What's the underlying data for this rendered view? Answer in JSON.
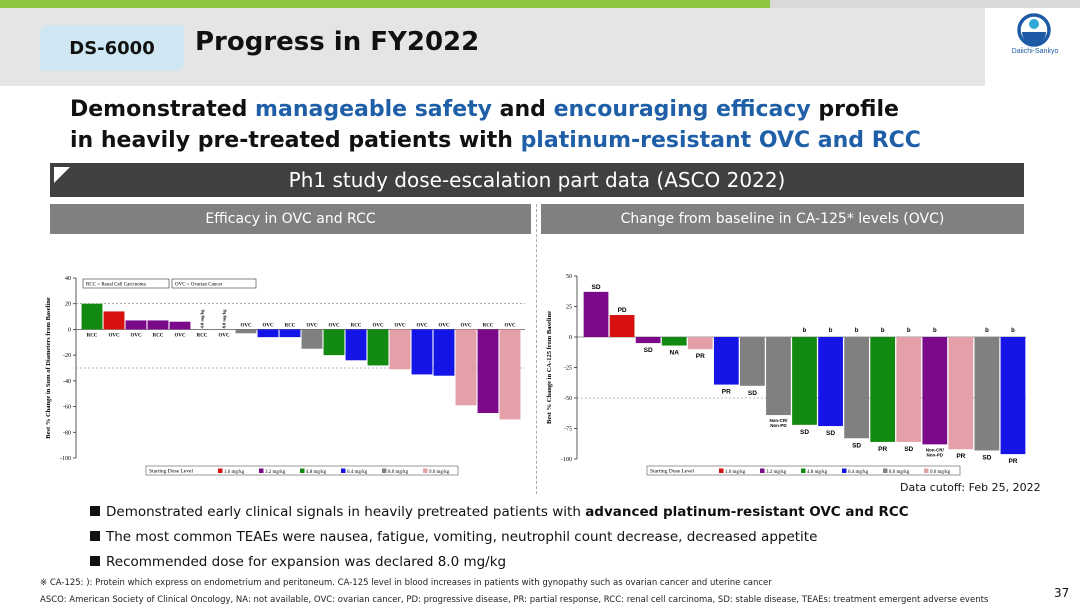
{
  "header": {
    "tag": "DS-6000",
    "title": "Progress in FY2022",
    "logo_text": "Daiichi-Sankyo"
  },
  "headline": {
    "line1": [
      {
        "text": "Demonstrated ",
        "highlight": false
      },
      {
        "text": "manageable safety",
        "highlight": true
      },
      {
        "text": " and ",
        "highlight": false
      },
      {
        "text": "encouraging efficacy",
        "highlight": true
      },
      {
        "text": " profile",
        "highlight": false
      }
    ],
    "line2": [
      {
        "text": "in heavily pre-treated patients with ",
        "highlight": false
      },
      {
        "text": "platinum-resistant OVC and RCC",
        "highlight": true
      }
    ]
  },
  "banner": "Ph1 study dose-escalation part data (ASCO 2022)",
  "panels": {
    "left_title": "Efficacy in OVC and RCC",
    "right_title": "Change from baseline in CA-125*  levels (OVC)"
  },
  "colors": {
    "accent_blue": "#1f5fa8",
    "dose_1_6": "#d81010",
    "dose_3_2": "#7a0a8a",
    "dose_4_8": "#128a12",
    "dose_6_4": "#1414e6",
    "dose_8_0": "#808080",
    "dose_9_6": "#e3a0a8"
  },
  "chart_data": [
    {
      "type": "bar",
      "title": "",
      "ylabel": "Best % Change in Sum of Diameters from Baseline",
      "ylim": [
        -100,
        40
      ],
      "yticks": [
        40,
        20,
        0,
        -20,
        -40,
        -60,
        -80,
        -100
      ],
      "reference_lines": [
        20,
        -30
      ],
      "legend_boxes": [
        "RCC = Renal Cell Carcinoma",
        "OVC = Ovarian Cancer"
      ],
      "series_legend_title": "Starting Dose Level",
      "series_legend": [
        {
          "label": "1.6 mg/kg",
          "color": "#d81010"
        },
        {
          "label": "3.2 mg/kg",
          "color": "#7a0a8a"
        },
        {
          "label": "4.8 mg/kg",
          "color": "#128a12"
        },
        {
          "label": "6.4 mg/kg",
          "color": "#1414e6"
        },
        {
          "label": "8.0 mg/kg",
          "color": "#808080"
        },
        {
          "label": "9.6 mg/kg",
          "color": "#e3a0a8"
        }
      ],
      "bars": [
        {
          "value": 20,
          "dose": "4.8 mg/kg",
          "label": "RCC"
        },
        {
          "value": 14,
          "dose": "1.6 mg/kg",
          "label": "OVC"
        },
        {
          "value": 7,
          "dose": "3.2 mg/kg",
          "label": "OVC"
        },
        {
          "value": 7,
          "dose": "3.2 mg/kg",
          "label": "RCC"
        },
        {
          "value": 6,
          "dose": "3.2 mg/kg",
          "label": "OVC"
        },
        {
          "value": 0,
          "dose": "",
          "label": "RCC",
          "note": "4.8 mg/kg"
        },
        {
          "value": 0,
          "dose": "",
          "label": "OVC",
          "note": "8.0 mg/kg"
        },
        {
          "value": -3,
          "dose": "8.0 mg/kg",
          "label": "OVC"
        },
        {
          "value": -6,
          "dose": "6.4 mg/kg",
          "label": "OVC"
        },
        {
          "value": -6,
          "dose": "6.4 mg/kg",
          "label": "RCC"
        },
        {
          "value": -15,
          "dose": "8.0 mg/kg",
          "label": "OVC"
        },
        {
          "value": -20,
          "dose": "4.8 mg/kg",
          "label": "OVC"
        },
        {
          "value": -24,
          "dose": "6.4 mg/kg",
          "label": "RCC"
        },
        {
          "value": -28,
          "dose": "4.8 mg/kg",
          "label": "OVC"
        },
        {
          "value": -31,
          "dose": "9.6 mg/kg",
          "label": "OVC"
        },
        {
          "value": -35,
          "dose": "6.4 mg/kg",
          "label": "OVC"
        },
        {
          "value": -36,
          "dose": "6.4 mg/kg",
          "label": "OVC"
        },
        {
          "value": -59,
          "dose": "9.6 mg/kg",
          "label": "OVC"
        },
        {
          "value": -65,
          "dose": "3.2 mg/kg",
          "label": "RCC"
        },
        {
          "value": -70,
          "dose": "9.6 mg/kg",
          "label": "OVC"
        }
      ]
    },
    {
      "type": "bar",
      "title": "",
      "ylabel": "Best % Change in CA-125 from Baseline",
      "ylim": [
        -100,
        50
      ],
      "yticks": [
        50,
        25,
        0,
        -25,
        -50,
        -75,
        -100
      ],
      "reference_lines": [
        -50
      ],
      "series_legend_title": "Starting Dose Level",
      "series_legend": [
        {
          "label": "1.6 mg/kg",
          "color": "#d81010"
        },
        {
          "label": "3.2 mg/kg",
          "color": "#7a0a8a"
        },
        {
          "label": "4.8 mg/kg",
          "color": "#128a12"
        },
        {
          "label": "6.4 mg/kg",
          "color": "#1414e6"
        },
        {
          "label": "8.0 mg/kg",
          "color": "#808080"
        },
        {
          "label": "9.6 mg/kg",
          "color": "#e3a0a8"
        }
      ],
      "bars": [
        {
          "value": 37,
          "dose": "3.2 mg/kg",
          "label": "SD",
          "b": false
        },
        {
          "value": 18,
          "dose": "1.6 mg/kg",
          "label": "PD",
          "b": false
        },
        {
          "value": -5,
          "dose": "3.2 mg/kg",
          "label": "SD",
          "b": false
        },
        {
          "value": -7,
          "dose": "4.8 mg/kg",
          "label": "NA",
          "b": false
        },
        {
          "value": -10,
          "dose": "9.6 mg/kg",
          "label": "PR",
          "b": false
        },
        {
          "value": -39,
          "dose": "6.4 mg/kg",
          "label": "PR",
          "b": false
        },
        {
          "value": -40,
          "dose": "8.0 mg/kg",
          "label": "SD",
          "b": false
        },
        {
          "value": -64,
          "dose": "8.0 mg/kg",
          "label": "Non-CR/ Non-PD",
          "b": false
        },
        {
          "value": -72,
          "dose": "4.8 mg/kg",
          "label": "SD",
          "b": true
        },
        {
          "value": -73,
          "dose": "6.4 mg/kg",
          "label": "SD",
          "b": true
        },
        {
          "value": -83,
          "dose": "8.0 mg/kg",
          "label": "SD",
          "b": true
        },
        {
          "value": -86,
          "dose": "4.8 mg/kg",
          "label": "PR",
          "b": true
        },
        {
          "value": -86,
          "dose": "9.6 mg/kg",
          "label": "SD",
          "b": true
        },
        {
          "value": -88,
          "dose": "3.2 mg/kg",
          "label": "Non-CR/ Non-PD",
          "b": true
        },
        {
          "value": -92,
          "dose": "9.6 mg/kg",
          "label": "PR",
          "b": false
        },
        {
          "value": -93,
          "dose": "8.0 mg/kg",
          "label": "SD",
          "b": true
        },
        {
          "value": -96,
          "dose": "6.4 mg/kg",
          "label": "PR",
          "b": true
        }
      ]
    }
  ],
  "cutoff": "Data cutoff: Feb 25, 2022",
  "bullets": [
    [
      {
        "text": "Demonstrated early clinical signals in heavily pretreated patients with ",
        "bold": false
      },
      {
        "text": "advanced platinum-resistant OVC and RCC",
        "bold": true
      }
    ],
    [
      {
        "text": "The most common TEAEs were nausea, fatigue, vomiting, neutrophil count decrease, decreased appetite",
        "bold": false
      }
    ],
    [
      {
        "text": "Recommended dose for expansion was declared 8.0 mg/kg",
        "bold": false
      }
    ]
  ],
  "footnotes": {
    "line1": "※ CA-125: ): Protein which express on endometrium and  peritoneum. CA-125 level in blood increases in patients with gynopathy such as ovarian cancer  and uterine cancer",
    "line2": "ASCO: American Society of Clinical Oncology, NA: not available, OVC: ovarian cancer, PD: progressive disease, PR: partial response, RCC: renal cell carcinoma, SD: stable disease, TEAEs: treatment emergent adverse events"
  },
  "page_number": "37"
}
